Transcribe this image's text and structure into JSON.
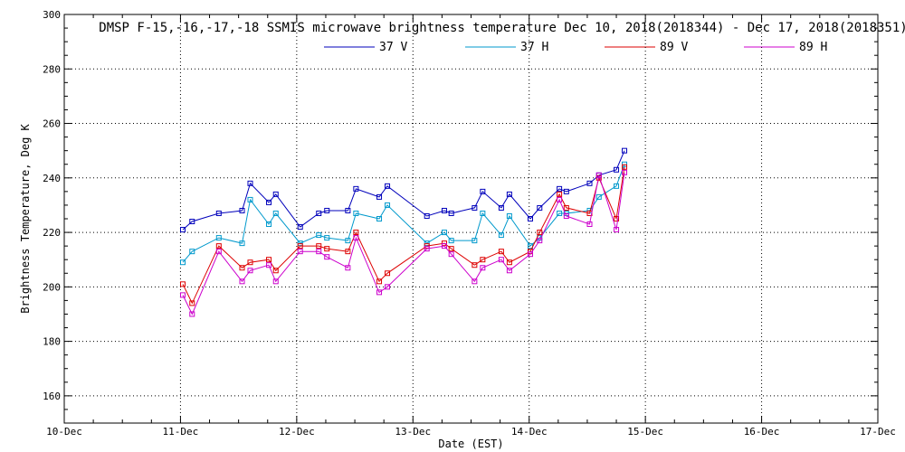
{
  "chart_data": {
    "type": "line",
    "title": "DMSP F-15,-16,-17,-18 SSMIS microwave brightness temperature Dec 10, 2018(2018344) - Dec 17, 2018(2018351)",
    "xlabel": "Date (EST)",
    "ylabel": "Brightness Temperature, Deg K",
    "xlim": [
      0,
      7
    ],
    "ylim": [
      150,
      300
    ],
    "x_ticks": [
      0,
      1,
      2,
      3,
      4,
      5,
      6,
      7
    ],
    "x_tick_labels": [
      "10-Dec",
      "11-Dec",
      "12-Dec",
      "13-Dec",
      "14-Dec",
      "15-Dec",
      "16-Dec",
      "17-Dec"
    ],
    "y_ticks": [
      160,
      180,
      200,
      220,
      240,
      260,
      280,
      300
    ],
    "y_tick_labels": [
      "160",
      "180",
      "200",
      "220",
      "240",
      "260",
      "280",
      "300"
    ],
    "grid": true,
    "legend_position": "top-center",
    "series": [
      {
        "name": "37 V",
        "color": "#0000bb",
        "x": [
          1.02,
          1.1,
          1.33,
          1.53,
          1.6,
          1.76,
          1.82,
          2.03,
          2.19,
          2.26,
          2.44,
          2.51,
          2.71,
          2.78,
          3.12,
          3.27,
          3.33,
          3.53,
          3.6,
          3.76,
          3.83,
          4.01,
          4.09,
          4.26,
          4.32,
          4.52,
          4.6,
          4.75,
          4.82
        ],
        "values": [
          221,
          224,
          227,
          228,
          238,
          231,
          234,
          222,
          227,
          228,
          228,
          236,
          233,
          237,
          226,
          228,
          227,
          229,
          235,
          229,
          234,
          225,
          229,
          236,
          235,
          238,
          241,
          243,
          250
        ]
      },
      {
        "name": "37 H",
        "color": "#0099cc",
        "x": [
          1.02,
          1.1,
          1.33,
          1.53,
          1.6,
          1.76,
          1.82,
          2.03,
          2.19,
          2.26,
          2.44,
          2.51,
          2.71,
          2.78,
          3.12,
          3.27,
          3.33,
          3.53,
          3.6,
          3.76,
          3.83,
          4.01,
          4.09,
          4.26,
          4.32,
          4.52,
          4.6,
          4.75,
          4.82
        ],
        "values": [
          209,
          213,
          218,
          216,
          232,
          223,
          227,
          216,
          219,
          218,
          217,
          227,
          225,
          230,
          216,
          220,
          217,
          217,
          227,
          219,
          226,
          215,
          218,
          227,
          227,
          228,
          233,
          237,
          245
        ]
      },
      {
        "name": "89 V",
        "color": "#dd0000",
        "x": [
          1.02,
          1.1,
          1.33,
          1.53,
          1.6,
          1.76,
          1.82,
          2.03,
          2.19,
          2.26,
          2.44,
          2.51,
          2.71,
          2.78,
          3.12,
          3.27,
          3.33,
          3.53,
          3.6,
          3.76,
          3.83,
          4.01,
          4.09,
          4.26,
          4.32,
          4.52,
          4.6,
          4.75,
          4.82
        ],
        "values": [
          201,
          194,
          215,
          207,
          209,
          210,
          206,
          215,
          215,
          214,
          213,
          220,
          202,
          205,
          215,
          216,
          214,
          208,
          210,
          213,
          209,
          213,
          220,
          234,
          229,
          227,
          240,
          225,
          244
        ]
      },
      {
        "name": "89 H",
        "color": "#cc00cc",
        "x": [
          1.02,
          1.1,
          1.33,
          1.53,
          1.6,
          1.76,
          1.82,
          2.03,
          2.19,
          2.26,
          2.44,
          2.51,
          2.71,
          2.78,
          3.12,
          3.27,
          3.33,
          3.53,
          3.6,
          3.76,
          3.83,
          4.01,
          4.09,
          4.26,
          4.32,
          4.52,
          4.6,
          4.75,
          4.82
        ],
        "values": [
          197,
          190,
          213,
          202,
          206,
          208,
          202,
          213,
          213,
          211,
          207,
          218,
          198,
          200,
          214,
          215,
          212,
          202,
          207,
          210,
          206,
          212,
          217,
          232,
          226,
          223,
          241,
          221,
          242
        ]
      }
    ]
  }
}
